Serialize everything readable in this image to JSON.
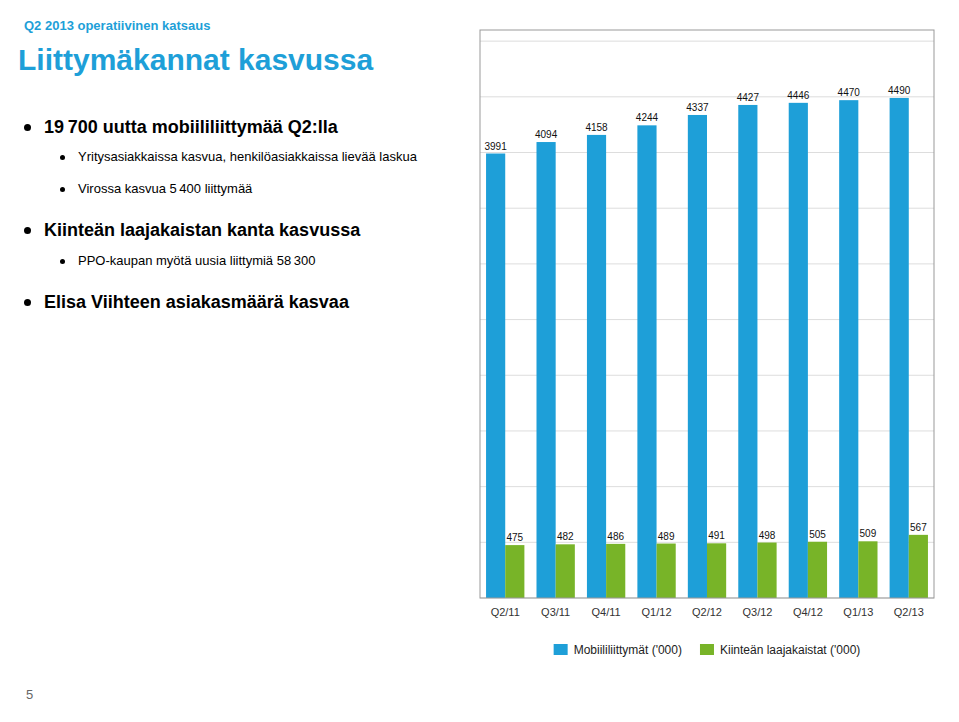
{
  "chart_data": {
    "type": "bar",
    "title": "Liittymäkannat kasvussa",
    "subtitle": "Q2 2013 operatiivinen katsaus",
    "annotations": [
      "19 700 uutta mobiililiittymää Q2:lla",
      "Yritysasiakkaissa kasvua, henkilöasiakkaissa lievää laskua",
      "Virossa kasvua 5 400 liittymää",
      "Kiinteän laajakaistan kanta kasvussa",
      "PPO-kaupan myötä uusia liittymiä 58 300",
      "Elisa Viihteen asiakasmäärä kasvaa",
      "5"
    ],
    "categories": [
      "Q2/11",
      "Q3/11",
      "Q4/11",
      "Q1/12",
      "Q2/12",
      "Q3/12",
      "Q4/12",
      "Q1/13",
      "Q2/13"
    ],
    "series": [
      {
        "name": "Mobiililiittymät ('000)",
        "color": "#1E9FD8",
        "values": [
          3991,
          4094,
          4158,
          4244,
          4337,
          4427,
          4446,
          4470,
          4490
        ]
      },
      {
        "name": "Kiinteän laajakaistat ('000)",
        "color": "#78B428",
        "values": [
          475,
          482,
          486,
          489,
          491,
          498,
          505,
          509,
          567
        ]
      }
    ],
    "ylim": [
      0,
      5100
    ],
    "yticks": [
      0,
      500,
      1000,
      1500,
      2000,
      2500,
      3000,
      3500,
      4000,
      4500,
      5000
    ],
    "grid": true,
    "data_labels": true,
    "tick_labels": "x",
    "legend": "bottom"
  }
}
